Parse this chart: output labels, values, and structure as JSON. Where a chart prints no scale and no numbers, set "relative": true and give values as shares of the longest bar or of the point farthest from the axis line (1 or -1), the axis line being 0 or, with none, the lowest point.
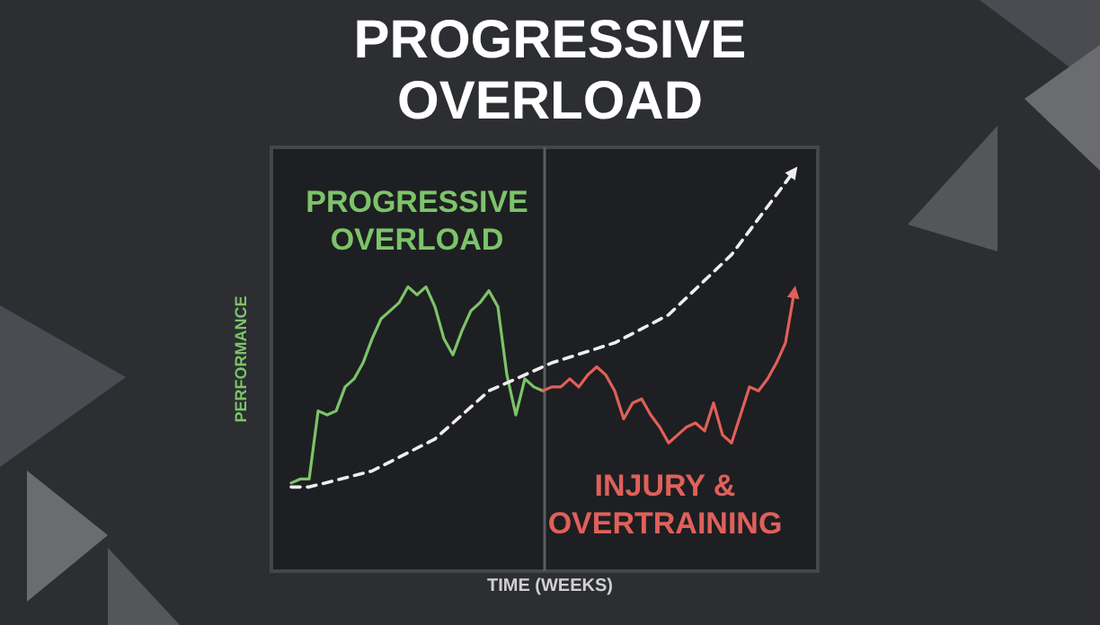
{
  "chart_data": {
    "type": "line",
    "title": "PROGRESSIVE OVERLOAD",
    "xlabel": "TIME (WEEKS)",
    "ylabel": "PERFORMANCE",
    "relative": true,
    "legend": false,
    "grid": false,
    "marker": "none",
    "categories": [
      null,
      null,
      null,
      null,
      null,
      null,
      null,
      null,
      null,
      null,
      null,
      null,
      null,
      null,
      null,
      null,
      null,
      null,
      null,
      null,
      null,
      null,
      null,
      null,
      null,
      null,
      null,
      null,
      null,
      null,
      null,
      null,
      null,
      null,
      null,
      null,
      null,
      null,
      null,
      null,
      null,
      null,
      null,
      null,
      null,
      null,
      null,
      null,
      null,
      null,
      null,
      null,
      null,
      null,
      null,
      null,
      null
    ],
    "series": [
      {
        "color": "#7cc46a",
        "line_style": "solid",
        "values": [
          0.22,
          0.23,
          0.23,
          0.4,
          0.39,
          0.4,
          0.46,
          0.48,
          0.52,
          0.58,
          0.63,
          0.65,
          0.67,
          0.71,
          0.69,
          0.71,
          0.66,
          0.58,
          0.54,
          0.6,
          0.65,
          0.67,
          0.7,
          0.66,
          0.49,
          0.39,
          0.48,
          0.46,
          0.45,
          null,
          null,
          null,
          null,
          null,
          null,
          null,
          null,
          null,
          null,
          null,
          null,
          null,
          null,
          null,
          null,
          null,
          null,
          null,
          null,
          null,
          null,
          null,
          null,
          null,
          null,
          null,
          null
        ]
      },
      {
        "color": "#e0605a",
        "line_style": "solid",
        "values": [
          null,
          null,
          null,
          null,
          null,
          null,
          null,
          null,
          null,
          null,
          null,
          null,
          null,
          null,
          null,
          null,
          null,
          null,
          null,
          null,
          null,
          null,
          null,
          null,
          null,
          null,
          null,
          null,
          0.45,
          0.46,
          0.46,
          0.48,
          0.46,
          0.49,
          0.51,
          0.49,
          0.45,
          0.38,
          0.42,
          0.43,
          0.39,
          0.36,
          0.32,
          0.34,
          0.36,
          0.37,
          0.35,
          0.42,
          0.34,
          0.32,
          0.39,
          0.46,
          0.45,
          0.48,
          0.52,
          0.57,
          0.7
        ]
      },
      {
        "color": "#eeeeee",
        "line_style": "dashed",
        "values": [
          0.21,
          null,
          0.21,
          null,
          null,
          null,
          null,
          null,
          null,
          0.25,
          null,
          null,
          null,
          null,
          null,
          null,
          0.33,
          null,
          null,
          null,
          null,
          null,
          0.45,
          null,
          null,
          null,
          null,
          null,
          null,
          0.52,
          null,
          null,
          null,
          null,
          null,
          null,
          0.57,
          null,
          null,
          null,
          null,
          null,
          0.64,
          null,
          null,
          null,
          null,
          null,
          null,
          0.79,
          null,
          null,
          null,
          null,
          null,
          null,
          1
        ]
      }
    ],
    "annotations": [
      "PROGRESSIVE OVERLOAD",
      "INJURY & OVERTRAINING"
    ]
  }
}
